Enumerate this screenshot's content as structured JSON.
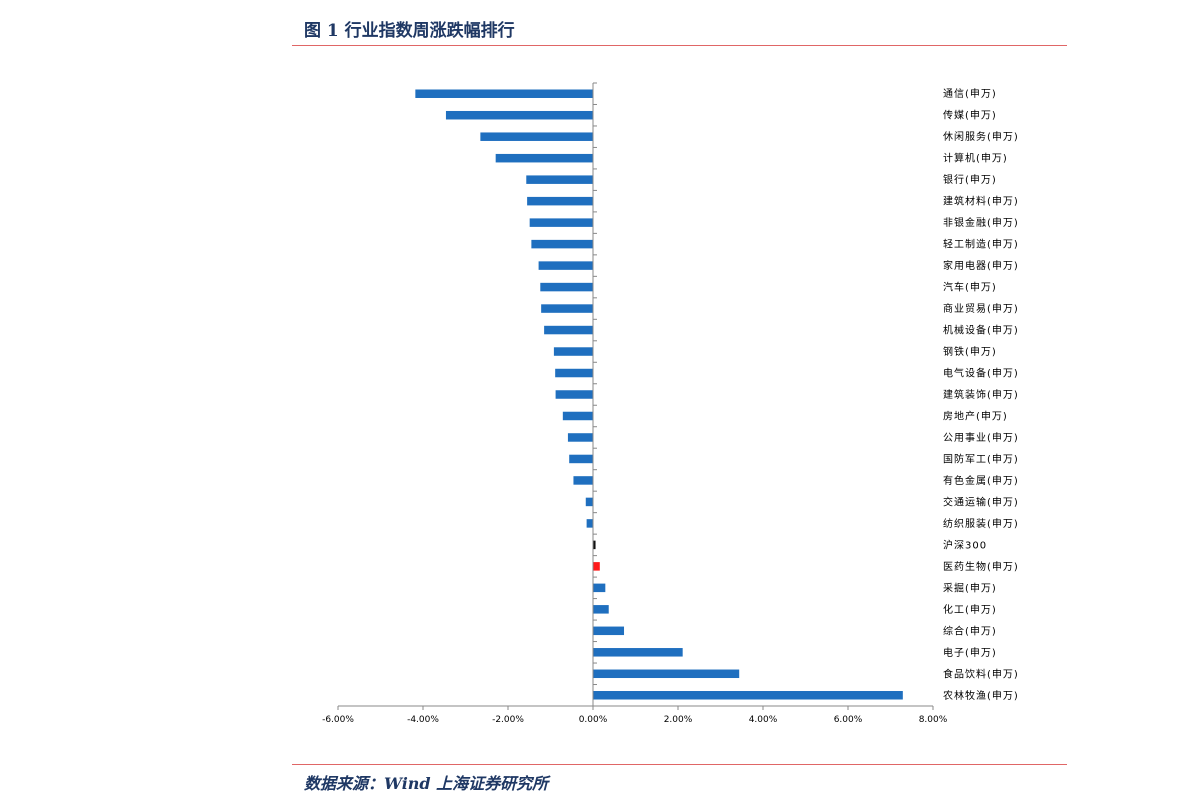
{
  "figure": {
    "title": "图 1 行业指数周涨跌幅排行",
    "source": "数据来源：Wind  上海证券研究所"
  },
  "colors": {
    "default": "#1f6fbf",
    "benchmark": "#111111",
    "highlight": "#ff1a1a"
  },
  "chart_data": {
    "type": "bar",
    "orientation": "horizontal",
    "title": "",
    "xlabel": "",
    "ylabel": "",
    "xlim": [
      -6,
      8
    ],
    "x_ticks": [
      -6,
      -4,
      -2,
      0,
      2,
      4,
      6,
      8
    ],
    "x_tick_labels": [
      "-6.00%",
      "-4.00%",
      "-2.00%",
      "0.00%",
      "2.00%",
      "4.00%",
      "6.00%",
      "8.00%"
    ],
    "value_unit": "%",
    "grid": false,
    "legend": "none",
    "categories": [
      "通信(申万)",
      "传媒(申万)",
      "休闲服务(申万)",
      "计算机(申万)",
      "银行(申万)",
      "建筑材料(申万)",
      "非银金融(申万)",
      "轻工制造(申万)",
      "家用电器(申万)",
      "汽车(申万)",
      "商业贸易(申万)",
      "机械设备(申万)",
      "钢铁(申万)",
      "电气设备(申万)",
      "建筑装饰(申万)",
      "房地产(申万)",
      "公用事业(申万)",
      "国防军工(申万)",
      "有色金属(申万)",
      "交通运输(申万)",
      "纺织服装(申万)",
      "沪深300",
      "医药生物(申万)",
      "采掘(申万)",
      "化工(申万)",
      "综合(申万)",
      "电子(申万)",
      "食品饮料(申万)",
      "农林牧渔(申万)"
    ],
    "values": [
      -4.18,
      -3.46,
      -2.65,
      -2.29,
      -1.57,
      -1.55,
      -1.49,
      -1.45,
      -1.28,
      -1.24,
      -1.22,
      -1.15,
      -0.92,
      -0.89,
      -0.88,
      -0.71,
      -0.59,
      -0.56,
      -0.46,
      -0.17,
      -0.15,
      0.06,
      0.16,
      0.29,
      0.37,
      0.73,
      2.11,
      3.44,
      7.29
    ],
    "bar_colors": [
      "#1f6fbf",
      "#1f6fbf",
      "#1f6fbf",
      "#1f6fbf",
      "#1f6fbf",
      "#1f6fbf",
      "#1f6fbf",
      "#1f6fbf",
      "#1f6fbf",
      "#1f6fbf",
      "#1f6fbf",
      "#1f6fbf",
      "#1f6fbf",
      "#1f6fbf",
      "#1f6fbf",
      "#1f6fbf",
      "#1f6fbf",
      "#1f6fbf",
      "#1f6fbf",
      "#1f6fbf",
      "#1f6fbf",
      "#111111",
      "#ff1a1a",
      "#1f6fbf",
      "#1f6fbf",
      "#1f6fbf",
      "#1f6fbf",
      "#1f6fbf",
      "#1f6fbf"
    ]
  }
}
